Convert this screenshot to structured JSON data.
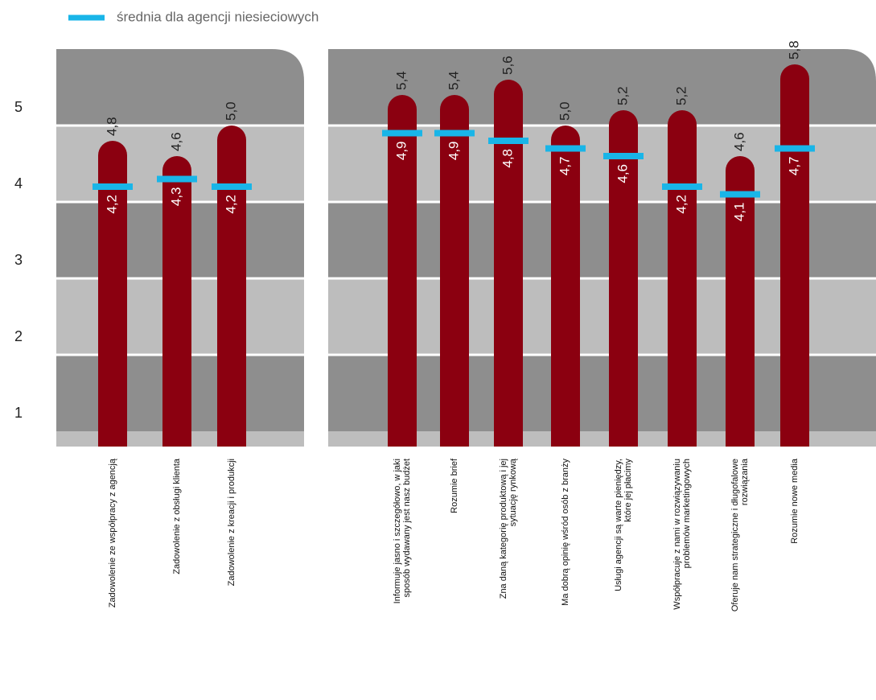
{
  "chart_data": {
    "type": "bar",
    "categories": [
      "Zadowolenie ze współpracy z agencją",
      "Zadowolenie z obsługi klienta",
      "Zadowolenie z kreacji i produkcji",
      "Informuje jasno i szczegółowo, w jaki\nsposób wydawany jest nasz budżet",
      "Rozumie  brief",
      "Zna daną kategorię produktową i jej\nsytuację rynkową",
      "Ma dobrą opinię wśród osób z branży",
      "Usługi  agencji są warte pieniędzy,\nktóre jej płacimy",
      "Współpracuje z nami w rozwiązywaniu\nproblemów marketingowych",
      "Oferuje nam strategiczne i długofalowe\nrozwiązania",
      "Rozumie nowe media"
    ],
    "values": [
      4.8,
      4.6,
      5.0,
      5.4,
      5.4,
      5.6,
      5.0,
      5.2,
      5.2,
      4.6,
      5.8
    ],
    "value_labels": [
      "4,8",
      "4,6",
      "5,0",
      "5,4",
      "5,4",
      "5,6",
      "5,0",
      "5,2",
      "5,2",
      "4,6",
      "5,8"
    ],
    "color": "#8b0010",
    "series": [
      {
        "name": "średnia dla agencji niesieciowych",
        "color": "#19b5e8",
        "values": [
          4.2,
          4.3,
          4.2,
          4.9,
          4.9,
          4.8,
          4.7,
          4.6,
          4.2,
          4.1,
          4.7
        ],
        "value_labels": [
          "4,2",
          "4,3",
          "4,2",
          "4,9",
          "4,9",
          "4,8",
          "4,7",
          "4,6",
          "4,2",
          "4,1",
          "4,7"
        ]
      }
    ],
    "ylim": [
      0.8,
      6
    ],
    "yticks": [
      1,
      2,
      3,
      4,
      5
    ],
    "grid": true
  }
}
